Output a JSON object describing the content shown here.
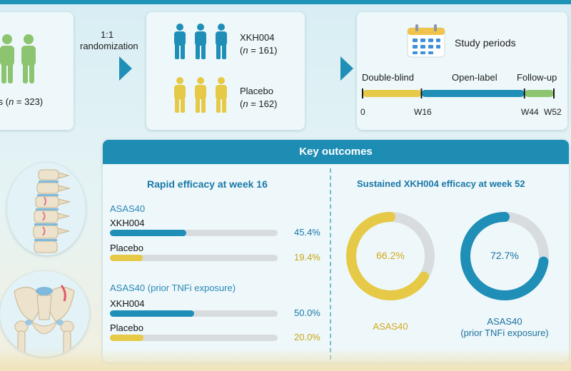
{
  "colors": {
    "teal": "#1f8fb8",
    "yellow": "#e6c946",
    "green": "#8cc46f",
    "gray_track": "#d9dcdf",
    "title_blue": "#1a77a8"
  },
  "enrollment": {
    "label_prefix": "ts (",
    "label_n": "n",
    "label_suffix": " = 323)"
  },
  "randomization": {
    "ratio": "1:1",
    "label": "randomization"
  },
  "arms": [
    {
      "name": "XKH004",
      "n_prefix": "(",
      "n_var": "n",
      "n_suffix": " = 161)",
      "icon": "people-teal-icon"
    },
    {
      "name": "Placebo",
      "n_prefix": "(",
      "n_var": "n",
      "n_suffix": " = 162)",
      "icon": "people-yellow-icon"
    }
  ],
  "study_periods": {
    "title": "Study periods",
    "icon": "calendar-icon",
    "phases": [
      {
        "label": "Double-blind",
        "start_week": 0,
        "end_week": 16,
        "color": "#e6c946"
      },
      {
        "label": "Open-label",
        "start_week": 16,
        "end_week": 44,
        "color": "#1f8fb8"
      },
      {
        "label": "Follow-up",
        "start_week": 44,
        "end_week": 52,
        "color": "#8cc46f"
      }
    ],
    "ticks": [
      "0",
      "W16",
      "W44",
      "W52"
    ]
  },
  "key_outcomes": {
    "title": "Key outcomes",
    "rapid": {
      "title": "Rapid efficacy at week 16",
      "groups": [
        {
          "label": "ASAS40",
          "rows": [
            {
              "arm": "XKH004",
              "value": 45.4,
              "text": "45.4%",
              "color": "#1f8fb8"
            },
            {
              "arm": "Placebo",
              "value": 19.4,
              "text": "19.4%",
              "color": "#e6c946"
            }
          ]
        },
        {
          "label": "ASAS40 (prior TNFi exposure)",
          "rows": [
            {
              "arm": "XKH004",
              "value": 50.0,
              "text": "50.0%",
              "color": "#1f8fb8"
            },
            {
              "arm": "Placebo",
              "value": 20.0,
              "text": "20.0%",
              "color": "#e6c946"
            }
          ]
        }
      ]
    },
    "sustained": {
      "title": "Sustained XKH004 efficacy at week 52",
      "donuts": [
        {
          "value": 66.2,
          "text": "66.2%",
          "label": "ASAS40",
          "label2": "",
          "color": "#e6c946",
          "text_color": "#d4a81c"
        },
        {
          "value": 72.7,
          "text": "72.7%",
          "label": "ASAS40",
          "label2": "(prior TNFi exposure)",
          "color": "#1f8fb8",
          "text_color": "#1a6f9e"
        }
      ]
    }
  },
  "illustrations": {
    "spine": "spine-icon",
    "pelvis": "pelvis-icon"
  }
}
